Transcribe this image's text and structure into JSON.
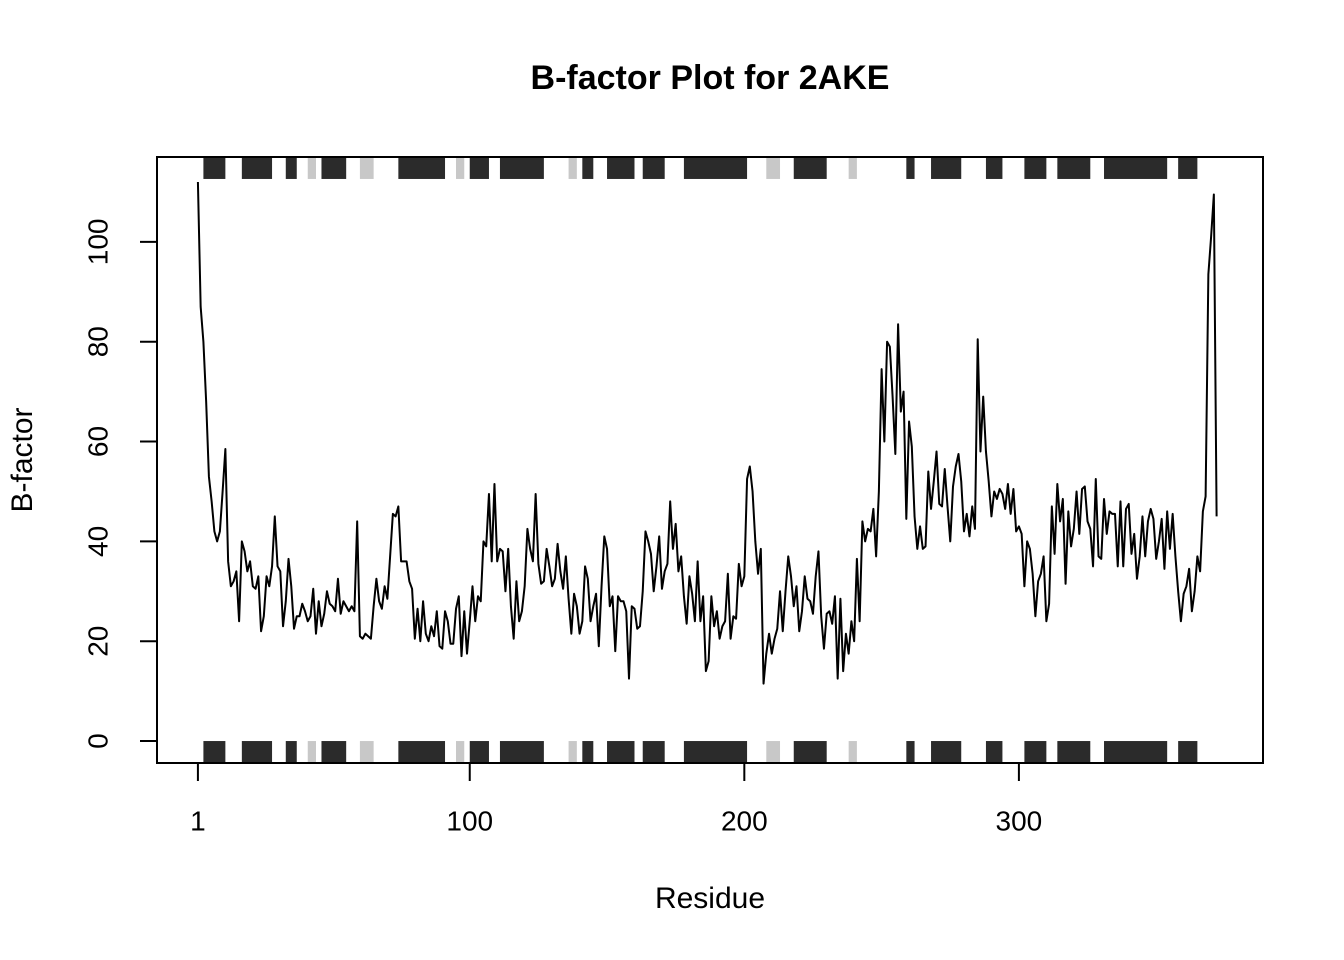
{
  "chart_data": {
    "type": "line",
    "title": "B-factor Plot for 2AKE",
    "x_label": "Residue",
    "y_label": "B-factor",
    "color": "#000000",
    "xlim": [
      -13.9,
      388.9
    ],
    "ylim": [
      -4.4,
      117
    ],
    "xticks": [
      1,
      100,
      200,
      300
    ],
    "yticks": [
      0,
      20,
      40,
      60,
      80,
      100
    ],
    "sse": {
      "helix": {
        "color": "#2b2b2b",
        "ranges": [
          [
            3,
            11
          ],
          [
            17,
            28
          ],
          [
            33,
            37
          ],
          [
            46,
            55
          ],
          [
            74,
            91
          ],
          [
            100,
            107
          ],
          [
            111,
            127
          ],
          [
            141,
            145
          ],
          [
            150,
            160
          ],
          [
            163,
            171
          ],
          [
            178,
            201
          ],
          [
            218,
            230
          ],
          [
            259,
            262
          ],
          [
            268,
            279
          ],
          [
            288,
            294
          ],
          [
            302,
            310
          ],
          [
            314,
            326
          ],
          [
            331,
            354
          ],
          [
            358,
            365
          ]
        ]
      },
      "strand": {
        "color": "#c8c8c8",
        "ranges": [
          [
            41,
            44
          ],
          [
            60,
            65
          ],
          [
            95,
            98
          ],
          [
            136,
            139
          ],
          [
            208,
            213
          ],
          [
            238,
            241
          ]
        ]
      }
    },
    "x": [
      1,
      2,
      3,
      4,
      5,
      6,
      7,
      8,
      9,
      10,
      11,
      12,
      13,
      14,
      15,
      16,
      17,
      18,
      19,
      20,
      21,
      22,
      23,
      24,
      25,
      26,
      27,
      28,
      29,
      30,
      31,
      32,
      33,
      34,
      35,
      36,
      37,
      38,
      39,
      40,
      41,
      42,
      43,
      44,
      45,
      46,
      47,
      48,
      49,
      50,
      51,
      52,
      53,
      54,
      55,
      56,
      57,
      58,
      59,
      60,
      61,
      62,
      63,
      64,
      65,
      66,
      67,
      68,
      69,
      70,
      71,
      72,
      73,
      74,
      75,
      76,
      77,
      78,
      79,
      80,
      81,
      82,
      83,
      84,
      85,
      86,
      87,
      88,
      89,
      90,
      91,
      92,
      93,
      94,
      95,
      96,
      97,
      98,
      99,
      100,
      101,
      102,
      103,
      104,
      105,
      106,
      107,
      108,
      109,
      110,
      111,
      112,
      113,
      114,
      115,
      116,
      117,
      118,
      119,
      120,
      121,
      122,
      123,
      124,
      125,
      126,
      127,
      128,
      129,
      130,
      131,
      132,
      133,
      134,
      135,
      136,
      137,
      138,
      139,
      140,
      141,
      142,
      143,
      144,
      145,
      146,
      147,
      148,
      149,
      150,
      151,
      152,
      153,
      154,
      155,
      156,
      157,
      158,
      159,
      160,
      161,
      162,
      163,
      164,
      165,
      166,
      167,
      168,
      169,
      170,
      171,
      172,
      173,
      174,
      175,
      176,
      177,
      178,
      179,
      180,
      181,
      182,
      183,
      184,
      185,
      186,
      187,
      188,
      189,
      190,
      191,
      192,
      193,
      194,
      195,
      196,
      197,
      198,
      199,
      200,
      201,
      202,
      203,
      204,
      205,
      206,
      207,
      208,
      209,
      210,
      211,
      212,
      213,
      214,
      215,
      216,
      217,
      218,
      219,
      220,
      221,
      222,
      223,
      224,
      225,
      226,
      227,
      228,
      229,
      230,
      231,
      232,
      233,
      234,
      235,
      236,
      237,
      238,
      239,
      240,
      241,
      242,
      243,
      244,
      245,
      246,
      247,
      248,
      249,
      250,
      251,
      252,
      253,
      254,
      255,
      256,
      257,
      258,
      259,
      260,
      261,
      262,
      263,
      264,
      265,
      266,
      267,
      268,
      269,
      270,
      271,
      272,
      273,
      274,
      275,
      276,
      277,
      278,
      279,
      280,
      281,
      282,
      283,
      284,
      285,
      286,
      287,
      288,
      289,
      290,
      291,
      292,
      293,
      294,
      295,
      296,
      297,
      298,
      299,
      300,
      301,
      302,
      303,
      304,
      305,
      306,
      307,
      308,
      309,
      310,
      311,
      312,
      313,
      314,
      315,
      316,
      317,
      318,
      319,
      320,
      321,
      322,
      323,
      324,
      325,
      326,
      327,
      328,
      329,
      330,
      331,
      332,
      333,
      334,
      335,
      336,
      337,
      338,
      339,
      340,
      341,
      342,
      343,
      344,
      345,
      346,
      347,
      348,
      349,
      350,
      351,
      352,
      353,
      354,
      355,
      356,
      357,
      358,
      359,
      360,
      361,
      362,
      363,
      364,
      365,
      366,
      367,
      368,
      369,
      370,
      371,
      372
    ],
    "values": [
      112,
      87,
      80,
      68,
      53,
      48,
      42,
      40,
      42,
      50,
      58.5,
      36,
      31,
      32,
      34,
      24,
      40,
      38,
      34,
      36,
      31,
      30.5,
      33,
      22,
      25,
      33,
      31,
      35,
      45,
      35,
      34,
      23,
      28,
      36.5,
      31,
      22.5,
      25,
      25,
      27.5,
      26,
      24,
      25,
      30.5,
      21.5,
      28,
      23,
      25.5,
      30,
      27.5,
      27,
      26,
      32.5,
      25.5,
      28,
      27,
      26,
      27,
      26,
      44,
      21,
      20.5,
      21.5,
      21,
      20.5,
      27,
      32.5,
      28,
      26.5,
      31,
      28.5,
      37,
      45.5,
      45,
      47,
      36,
      36,
      36,
      32,
      30.5,
      20.5,
      26.5,
      20,
      28,
      21.5,
      20,
      23,
      21,
      26,
      19,
      18.5,
      26,
      24,
      19.5,
      19.5,
      26.5,
      29,
      17,
      26,
      17.5,
      24,
      31,
      24,
      29,
      28,
      40,
      39,
      49.5,
      36,
      51.5,
      36,
      38.5,
      38,
      30,
      38.5,
      27,
      20.5,
      32,
      24,
      26,
      31,
      42.5,
      38.5,
      36,
      49.5,
      35.5,
      31.5,
      32,
      38.5,
      35,
      31,
      32.5,
      39.5,
      34,
      30.5,
      37,
      28.5,
      21.5,
      29.5,
      27,
      21.5,
      24,
      35,
      32.5,
      24,
      27,
      29.5,
      19,
      31,
      41,
      38.5,
      27,
      29,
      18,
      29,
      28,
      28,
      26,
      12.5,
      27,
      26.5,
      22.5,
      23,
      30,
      42,
      40,
      37.5,
      30,
      35,
      41,
      30.5,
      34,
      35.5,
      48,
      38.5,
      43.5,
      34,
      37,
      29,
      23.5,
      33,
      29.5,
      24,
      36,
      24,
      29,
      14,
      16,
      29,
      23,
      26,
      20.5,
      23,
      24,
      33.5,
      20.5,
      25,
      24.5,
      35.5,
      31,
      33,
      52.5,
      55,
      50,
      40,
      33.5,
      38.5,
      11.5,
      17.5,
      21.5,
      17.5,
      20.5,
      22.5,
      30,
      22,
      30,
      37,
      33,
      27,
      31,
      22,
      26,
      33,
      28.5,
      28,
      25.5,
      33,
      38,
      25,
      18.5,
      25.5,
      26,
      23.5,
      29,
      12.5,
      28.5,
      14,
      21.5,
      17.5,
      24,
      20,
      36.5,
      24,
      44,
      40,
      42.5,
      42,
      46.5,
      37,
      50,
      74.5,
      60,
      80,
      79,
      69,
      57.5,
      83.5,
      66,
      70,
      44.5,
      64,
      59,
      45,
      38.5,
      43,
      38.5,
      39,
      54,
      46.5,
      52,
      58,
      47.5,
      47,
      54.5,
      47,
      40,
      51,
      55,
      57.5,
      52,
      42,
      45.5,
      41,
      47,
      42.5,
      80.5,
      58,
      69,
      58,
      52,
      45,
      50,
      48.5,
      50.5,
      49.5,
      46.5,
      51.5,
      45.5,
      50.5,
      42,
      43,
      41.5,
      31,
      40,
      38.5,
      33.5,
      25,
      32,
      33.5,
      37,
      24,
      27.5,
      47,
      37.5,
      51.5,
      44,
      48.5,
      31.5,
      46,
      39,
      42.5,
      50,
      41.5,
      50.5,
      51,
      44,
      42.5,
      35,
      52.5,
      37,
      36.5,
      48.5,
      41.5,
      46,
      45.5,
      45.5,
      35,
      48,
      35,
      46.5,
      47.5,
      37.5,
      41.5,
      32.5,
      37,
      45,
      37,
      44,
      46.5,
      44.5,
      36.5,
      40,
      44.5,
      34.5,
      46,
      38.5,
      45.5,
      37,
      30,
      24,
      29.5,
      31,
      34.5,
      26,
      30,
      37,
      34,
      46,
      49,
      93.5,
      101,
      109.5,
      45
    ]
  }
}
